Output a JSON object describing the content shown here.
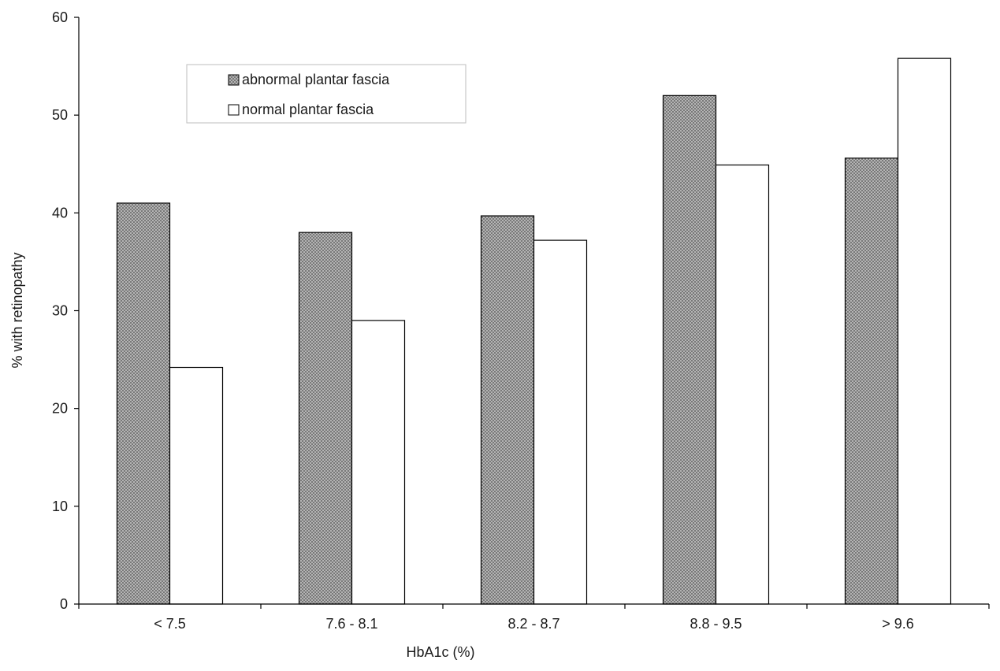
{
  "chart_data": {
    "type": "bar",
    "title": "",
    "xlabel": "HbA1c (%)",
    "ylabel": "% with retinopathy",
    "categories": [
      "< 7.5",
      "7.6 - 8.1",
      "8.2 - 8.7",
      "8.8 - 9.5",
      "> 9.6"
    ],
    "series": [
      {
        "name": "abnormal plantar fascia",
        "values": [
          41.0,
          38.0,
          39.7,
          52.0,
          45.6
        ],
        "fill": "crosshatch-gray",
        "color": "#a8a8a8"
      },
      {
        "name": "normal plantar fascia",
        "values": [
          24.2,
          29.0,
          37.2,
          44.9,
          55.8
        ],
        "fill": "white",
        "color": "#ffffff"
      }
    ],
    "ylim": [
      0,
      60
    ],
    "yticks": [
      "0",
      "10",
      "20",
      "30",
      "40",
      "50",
      "60"
    ],
    "grid": false,
    "legend": {
      "position": "top-left"
    }
  }
}
